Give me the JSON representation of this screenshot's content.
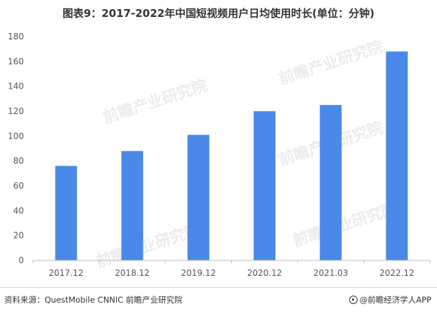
{
  "chart_data": {
    "type": "bar",
    "title": "图表9：2017-2022年中国短视频用户日均使用时长(单位：分钟)",
    "categories": [
      "2017.12",
      "2018.12",
      "2019.12",
      "2020.12",
      "2021.03",
      "2022.12"
    ],
    "values": [
      76,
      88,
      101,
      120,
      125,
      168
    ],
    "ylim": [
      0,
      180
    ],
    "yticks": [
      0,
      20,
      40,
      60,
      80,
      100,
      120,
      140,
      160,
      180
    ],
    "grid": false,
    "bar_color": "#4a89e8"
  },
  "footer": {
    "source": "资料来源：QuestMobile CNNIC 前瞻产业研究院",
    "brand": "@前瞻经济学人APP"
  }
}
